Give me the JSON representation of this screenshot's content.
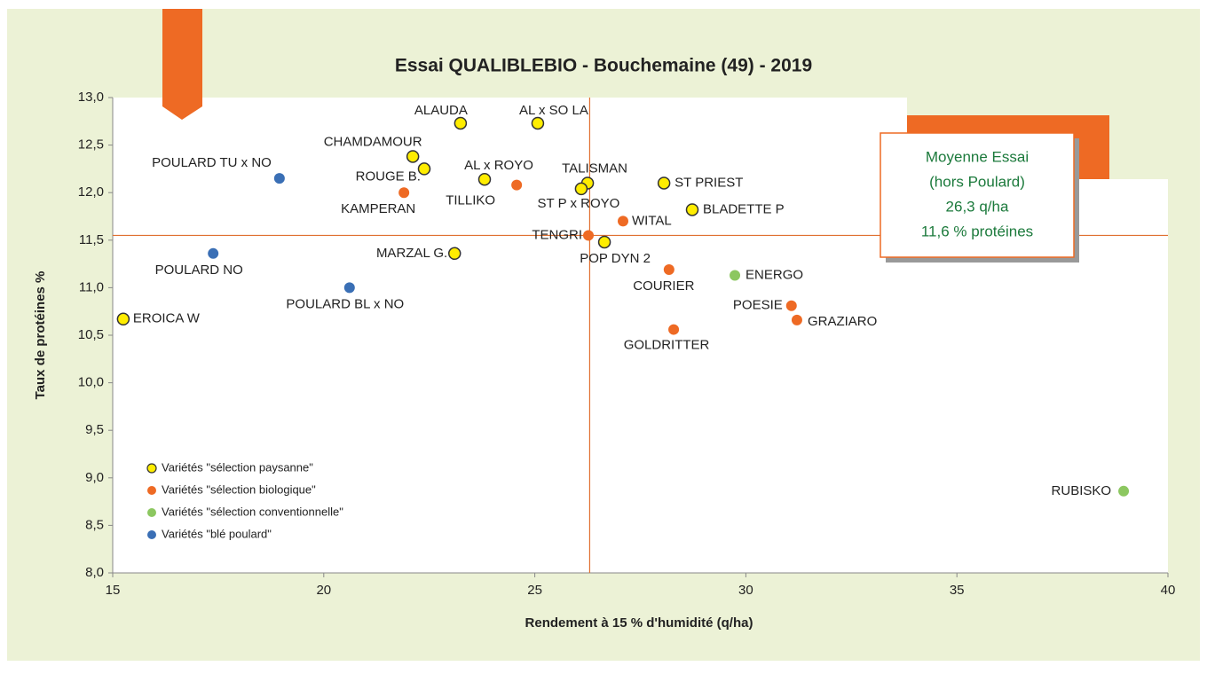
{
  "chart_data": {
    "type": "scatter",
    "title": "Essai QUALIBLEBIO - Bouchemaine (49) - 2019",
    "xlabel": "Rendement à 15 % d'humidité (q/ha)",
    "ylabel": "Taux de protéines %",
    "xlim": [
      15,
      40
    ],
    "xticks": [
      15,
      20,
      25,
      30,
      35,
      40
    ],
    "ylim": [
      8,
      13
    ],
    "yticks": [
      {
        "value": 8,
        "label": "8,0"
      },
      {
        "value": 8.5,
        "label": "8,5"
      },
      {
        "value": 9,
        "label": "9,0"
      },
      {
        "value": 9.5,
        "label": "9,5"
      },
      {
        "value": 10,
        "label": "10,0"
      },
      {
        "value": 10.5,
        "label": "10,5"
      },
      {
        "value": 11,
        "label": "11,0"
      },
      {
        "value": 11.5,
        "label": "11,5"
      },
      {
        "value": 12,
        "label": "12,0"
      },
      {
        "value": 12.5,
        "label": "12,5"
      },
      {
        "value": 13,
        "label": "13,0"
      }
    ],
    "mean_x": 26.3,
    "mean_y": 11.55,
    "annotation": [
      "Moyenne Essai",
      "(hors Poulard)",
      "26,3 q/ha",
      "11,6 % protéines"
    ],
    "series": [
      {
        "name": "Variétés \"sélection paysanne\"",
        "color": "#ffed00",
        "labels": [
          "ALAUDA",
          "AL x SO LA",
          "CHAMDAMOUR",
          "ROUGE B.",
          "AL x ROYO",
          "TALISMAN",
          "ST P x ROYO",
          "ST PRIEST",
          "BLADETTE P",
          "POP DYN 2",
          "MARZAL G.",
          "EROICA W"
        ],
        "x": [
          23.24,
          25.07,
          22.11,
          22.38,
          23.81,
          26.25,
          26.1,
          28.06,
          28.73,
          26.65,
          23.1,
          15.25
        ],
        "values": [
          12.73,
          12.73,
          12.38,
          12.25,
          12.14,
          12.1,
          12.04,
          12.1,
          11.82,
          11.48,
          11.36,
          10.67
        ]
      },
      {
        "name": "Variétés \"sélection biologique\"",
        "color": "#ee6a24",
        "labels": [
          "KAMPERAN",
          "TILLIKO",
          "WITAL",
          "TENGRI",
          "COURIER",
          "POESIE",
          "GRAZIARO",
          "GOLDRITTER"
        ],
        "x": [
          21.9,
          24.57,
          27.09,
          26.27,
          28.18,
          31.08,
          31.21,
          28.29
        ],
        "values": [
          12.0,
          12.08,
          11.7,
          11.55,
          11.19,
          10.81,
          10.66,
          10.56
        ]
      },
      {
        "name": "Variétés \"sélection conventionnelle\"",
        "color": "#8cc760",
        "labels": [
          "ENERGO",
          "RUBISKO"
        ],
        "x": [
          29.74,
          38.95
        ],
        "values": [
          11.13,
          8.86
        ]
      },
      {
        "name": "Variétés \"blé poulard\"",
        "color": "#3a6fb5",
        "labels": [
          "POULARD TU x NO",
          "POULARD NO",
          "POULARD BL x NO"
        ],
        "x": [
          18.95,
          17.38,
          20.61
        ],
        "values": [
          12.15,
          11.36,
          11.0
        ]
      }
    ]
  }
}
